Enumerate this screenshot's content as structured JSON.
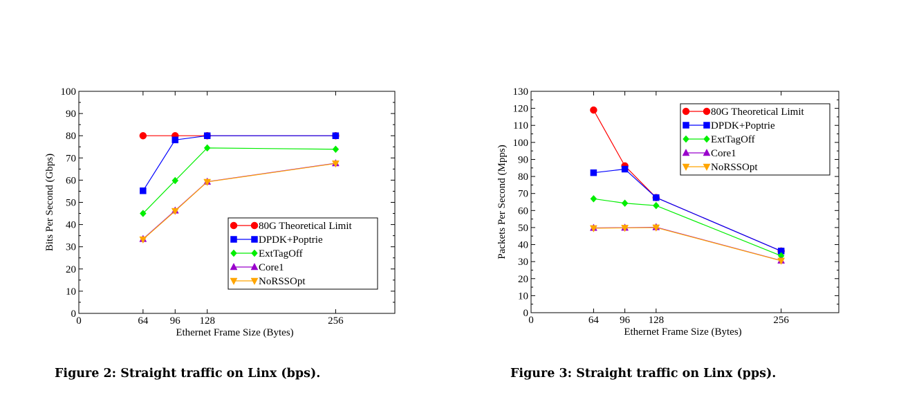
{
  "chart_data": [
    {
      "type": "line",
      "caption": "Figure 2: Straight traffic on Linx (bps).",
      "xlabel": "Ethernet Frame Size (Bytes)",
      "ylabel": "Bits Per Second (Gbps)",
      "xlim": [
        0,
        315
      ],
      "ylim": [
        0,
        100
      ],
      "xticks": [
        0,
        64,
        96,
        128,
        256
      ],
      "yticks": [
        0,
        10,
        20,
        30,
        40,
        50,
        60,
        70,
        80,
        90,
        100
      ],
      "x": [
        64,
        96,
        128,
        256
      ],
      "legend_position": "bottom-right",
      "series": [
        {
          "name": "80G Theoretical Limit",
          "values": [
            80,
            80,
            80,
            80
          ],
          "color": "#ff0000",
          "marker": "circle"
        },
        {
          "name": "DPDK+Poptrie",
          "values": [
            55.2,
            78.1,
            80,
            80
          ],
          "color": "#0000ff",
          "marker": "square"
        },
        {
          "name": "ExtTagOff",
          "values": [
            45,
            59.8,
            74.5,
            73.9
          ],
          "color": "#00ee00",
          "marker": "diamond"
        },
        {
          "name": "Core1",
          "values": [
            33.5,
            46.3,
            59.3,
            67.6
          ],
          "color": "#9900cc",
          "marker": "triangle-up"
        },
        {
          "name": "NoRSSOpt",
          "values": [
            33.3,
            46.1,
            59.2,
            67.5
          ],
          "color": "#ffa500",
          "marker": "triangle-down"
        }
      ]
    },
    {
      "type": "line",
      "caption": "Figure 3: Straight traffic on Linx (pps).",
      "xlabel": "Ethernet Frame Size (Bytes)",
      "ylabel": "Packets Per Second (Mpps)",
      "xlim": [
        0,
        315
      ],
      "ylim": [
        0,
        130
      ],
      "xticks": [
        0,
        64,
        96,
        128,
        256
      ],
      "yticks": [
        0,
        10,
        20,
        30,
        40,
        50,
        60,
        70,
        80,
        90,
        100,
        110,
        120,
        130
      ],
      "x": [
        64,
        96,
        128,
        256
      ],
      "legend_position": "top-right",
      "series": [
        {
          "name": "80G Theoretical Limit",
          "values": [
            119,
            86.2,
            67.6,
            36.2
          ],
          "color": "#ff0000",
          "marker": "circle"
        },
        {
          "name": "DPDK+Poptrie",
          "values": [
            82.2,
            84.3,
            67.6,
            36.2
          ],
          "color": "#0000ff",
          "marker": "square"
        },
        {
          "name": "ExtTagOff",
          "values": [
            66.9,
            64.3,
            62.9,
            33.4
          ],
          "color": "#00ee00",
          "marker": "diamond"
        },
        {
          "name": "Core1",
          "values": [
            49.8,
            49.9,
            50.2,
            30.6
          ],
          "color": "#9900cc",
          "marker": "triangle-up"
        },
        {
          "name": "NoRSSOpt",
          "values": [
            49.6,
            49.8,
            50.0,
            30.5
          ],
          "color": "#ffa500",
          "marker": "triangle-down"
        }
      ]
    }
  ]
}
